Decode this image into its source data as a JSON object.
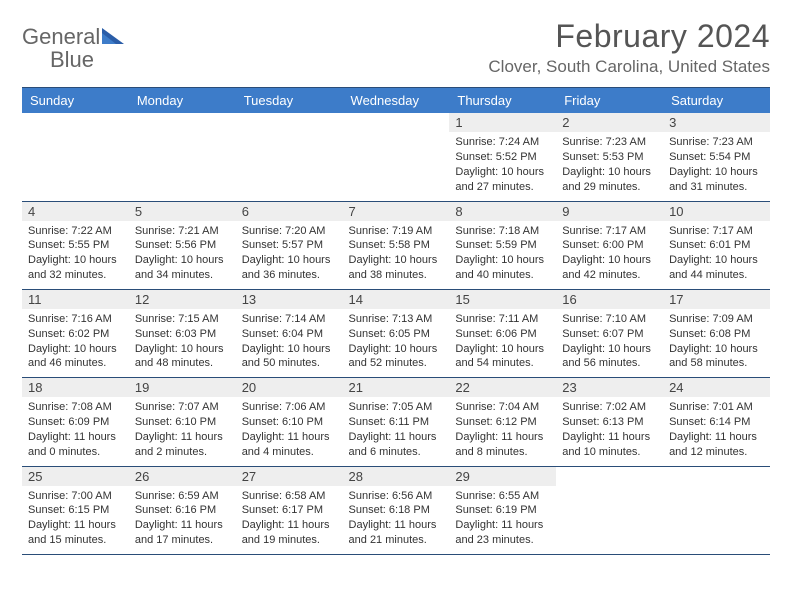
{
  "logo": {
    "text1": "General",
    "text2": "Blue"
  },
  "title": "February 2024",
  "location": "Clover, South Carolina, United States",
  "colors": {
    "header_bg": "#3d7cc9",
    "border": "#2a4d78",
    "daynum_bg": "#eeeeee",
    "text_gray": "#555555",
    "logo_gray": "#666666"
  },
  "day_headers": [
    "Sunday",
    "Monday",
    "Tuesday",
    "Wednesday",
    "Thursday",
    "Friday",
    "Saturday"
  ],
  "weeks": [
    [
      {
        "n": "",
        "sr": "",
        "ss": "",
        "dl": ""
      },
      {
        "n": "",
        "sr": "",
        "ss": "",
        "dl": ""
      },
      {
        "n": "",
        "sr": "",
        "ss": "",
        "dl": ""
      },
      {
        "n": "",
        "sr": "",
        "ss": "",
        "dl": ""
      },
      {
        "n": "1",
        "sr": "Sunrise: 7:24 AM",
        "ss": "Sunset: 5:52 PM",
        "dl": "Daylight: 10 hours and 27 minutes."
      },
      {
        "n": "2",
        "sr": "Sunrise: 7:23 AM",
        "ss": "Sunset: 5:53 PM",
        "dl": "Daylight: 10 hours and 29 minutes."
      },
      {
        "n": "3",
        "sr": "Sunrise: 7:23 AM",
        "ss": "Sunset: 5:54 PM",
        "dl": "Daylight: 10 hours and 31 minutes."
      }
    ],
    [
      {
        "n": "4",
        "sr": "Sunrise: 7:22 AM",
        "ss": "Sunset: 5:55 PM",
        "dl": "Daylight: 10 hours and 32 minutes."
      },
      {
        "n": "5",
        "sr": "Sunrise: 7:21 AM",
        "ss": "Sunset: 5:56 PM",
        "dl": "Daylight: 10 hours and 34 minutes."
      },
      {
        "n": "6",
        "sr": "Sunrise: 7:20 AM",
        "ss": "Sunset: 5:57 PM",
        "dl": "Daylight: 10 hours and 36 minutes."
      },
      {
        "n": "7",
        "sr": "Sunrise: 7:19 AM",
        "ss": "Sunset: 5:58 PM",
        "dl": "Daylight: 10 hours and 38 minutes."
      },
      {
        "n": "8",
        "sr": "Sunrise: 7:18 AM",
        "ss": "Sunset: 5:59 PM",
        "dl": "Daylight: 10 hours and 40 minutes."
      },
      {
        "n": "9",
        "sr": "Sunrise: 7:17 AM",
        "ss": "Sunset: 6:00 PM",
        "dl": "Daylight: 10 hours and 42 minutes."
      },
      {
        "n": "10",
        "sr": "Sunrise: 7:17 AM",
        "ss": "Sunset: 6:01 PM",
        "dl": "Daylight: 10 hours and 44 minutes."
      }
    ],
    [
      {
        "n": "11",
        "sr": "Sunrise: 7:16 AM",
        "ss": "Sunset: 6:02 PM",
        "dl": "Daylight: 10 hours and 46 minutes."
      },
      {
        "n": "12",
        "sr": "Sunrise: 7:15 AM",
        "ss": "Sunset: 6:03 PM",
        "dl": "Daylight: 10 hours and 48 minutes."
      },
      {
        "n": "13",
        "sr": "Sunrise: 7:14 AM",
        "ss": "Sunset: 6:04 PM",
        "dl": "Daylight: 10 hours and 50 minutes."
      },
      {
        "n": "14",
        "sr": "Sunrise: 7:13 AM",
        "ss": "Sunset: 6:05 PM",
        "dl": "Daylight: 10 hours and 52 minutes."
      },
      {
        "n": "15",
        "sr": "Sunrise: 7:11 AM",
        "ss": "Sunset: 6:06 PM",
        "dl": "Daylight: 10 hours and 54 minutes."
      },
      {
        "n": "16",
        "sr": "Sunrise: 7:10 AM",
        "ss": "Sunset: 6:07 PM",
        "dl": "Daylight: 10 hours and 56 minutes."
      },
      {
        "n": "17",
        "sr": "Sunrise: 7:09 AM",
        "ss": "Sunset: 6:08 PM",
        "dl": "Daylight: 10 hours and 58 minutes."
      }
    ],
    [
      {
        "n": "18",
        "sr": "Sunrise: 7:08 AM",
        "ss": "Sunset: 6:09 PM",
        "dl": "Daylight: 11 hours and 0 minutes."
      },
      {
        "n": "19",
        "sr": "Sunrise: 7:07 AM",
        "ss": "Sunset: 6:10 PM",
        "dl": "Daylight: 11 hours and 2 minutes."
      },
      {
        "n": "20",
        "sr": "Sunrise: 7:06 AM",
        "ss": "Sunset: 6:10 PM",
        "dl": "Daylight: 11 hours and 4 minutes."
      },
      {
        "n": "21",
        "sr": "Sunrise: 7:05 AM",
        "ss": "Sunset: 6:11 PM",
        "dl": "Daylight: 11 hours and 6 minutes."
      },
      {
        "n": "22",
        "sr": "Sunrise: 7:04 AM",
        "ss": "Sunset: 6:12 PM",
        "dl": "Daylight: 11 hours and 8 minutes."
      },
      {
        "n": "23",
        "sr": "Sunrise: 7:02 AM",
        "ss": "Sunset: 6:13 PM",
        "dl": "Daylight: 11 hours and 10 minutes."
      },
      {
        "n": "24",
        "sr": "Sunrise: 7:01 AM",
        "ss": "Sunset: 6:14 PM",
        "dl": "Daylight: 11 hours and 12 minutes."
      }
    ],
    [
      {
        "n": "25",
        "sr": "Sunrise: 7:00 AM",
        "ss": "Sunset: 6:15 PM",
        "dl": "Daylight: 11 hours and 15 minutes."
      },
      {
        "n": "26",
        "sr": "Sunrise: 6:59 AM",
        "ss": "Sunset: 6:16 PM",
        "dl": "Daylight: 11 hours and 17 minutes."
      },
      {
        "n": "27",
        "sr": "Sunrise: 6:58 AM",
        "ss": "Sunset: 6:17 PM",
        "dl": "Daylight: 11 hours and 19 minutes."
      },
      {
        "n": "28",
        "sr": "Sunrise: 6:56 AM",
        "ss": "Sunset: 6:18 PM",
        "dl": "Daylight: 11 hours and 21 minutes."
      },
      {
        "n": "29",
        "sr": "Sunrise: 6:55 AM",
        "ss": "Sunset: 6:19 PM",
        "dl": "Daylight: 11 hours and 23 minutes."
      },
      {
        "n": "",
        "sr": "",
        "ss": "",
        "dl": ""
      },
      {
        "n": "",
        "sr": "",
        "ss": "",
        "dl": ""
      }
    ]
  ]
}
